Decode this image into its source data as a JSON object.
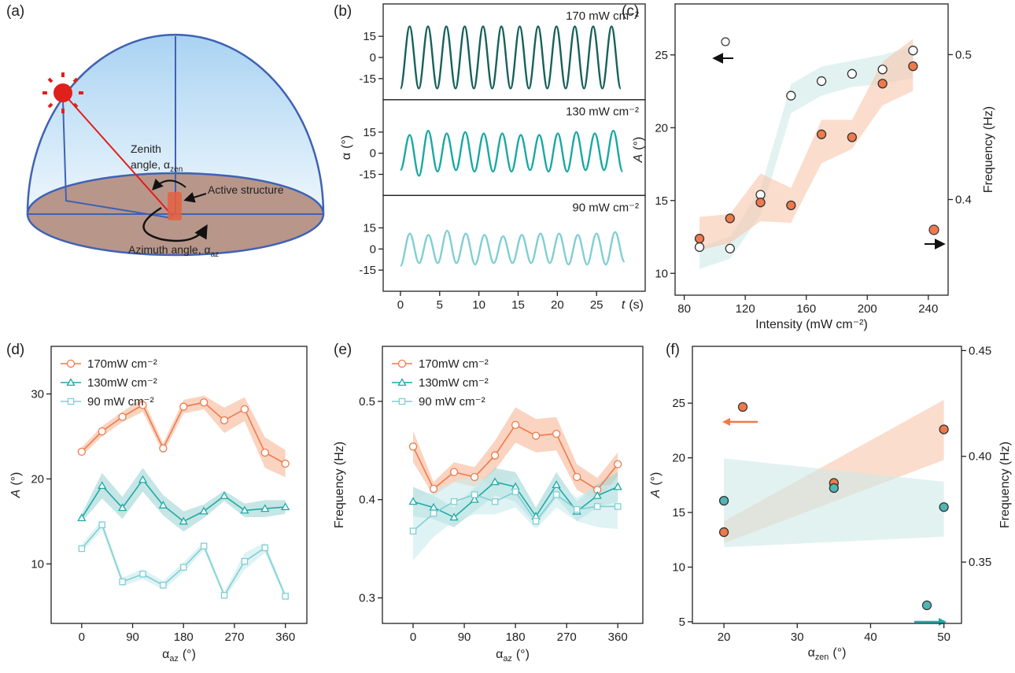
{
  "diagram": {
    "panel_label": "(a)",
    "zenith_label": {
      "line1": "Zenith",
      "line2": "angle, α",
      "subscript": "zen"
    },
    "structure_label": "Active structure",
    "azimuth_label": {
      "text": "Azimuth angle, α",
      "subscript": "az"
    }
  },
  "chart_data": [
    {
      "type": "line",
      "panel_label": "(b)",
      "xlabel": {
        "symbol": "t",
        "unit": "(s)"
      },
      "ylabel": {
        "symbol": "α",
        "unit": "(°)"
      },
      "xlim": [
        -2.2,
        31.2
      ],
      "xticks": [
        0,
        5,
        10,
        15,
        20,
        25
      ],
      "ylim": [
        -30,
        38
      ],
      "yticks": [
        -15,
        0,
        15
      ],
      "subplots": [
        {
          "annotation": "170 mW cm⁻²",
          "color": "#17615c",
          "x": [
            0,
            1.17,
            2.34,
            3.51,
            4.68,
            5.85,
            7.02,
            8.19,
            9.36,
            10.53,
            11.7,
            12.87,
            14.04,
            15.21,
            16.38,
            17.55,
            18.72,
            19.89,
            21.06,
            22.23,
            23.4,
            24.57,
            25.74,
            26.91,
            28.08
          ],
          "values": [
            -22,
            22,
            -22,
            22,
            -22,
            22,
            -22,
            22,
            -22,
            22,
            -22,
            22,
            -22,
            22,
            -22,
            22,
            -22,
            22,
            -22,
            22,
            -22,
            22,
            -22,
            22,
            -22
          ]
        },
        {
          "annotation": "130 mW cm⁻²",
          "color": "#1aa8a3",
          "x": [
            0,
            1.18,
            2.36,
            3.54,
            4.72,
            5.9,
            7.08,
            8.26,
            9.44,
            10.62,
            11.8,
            12.98,
            14.16,
            15.34,
            16.52,
            17.7,
            18.88,
            20.06,
            21.24,
            22.42,
            23.6,
            24.78,
            25.96,
            27.14,
            28.32
          ],
          "values": [
            -12,
            13,
            -16,
            16,
            -13,
            14,
            -12,
            15,
            -13,
            14,
            -13,
            14,
            -13,
            13,
            -12,
            13,
            -13,
            14,
            -13,
            15,
            -12,
            14,
            -12,
            16,
            -13
          ]
        },
        {
          "annotation": "90 mW cm⁻²",
          "color": "#7fcfd2",
          "x": [
            0,
            1.19,
            2.38,
            3.57,
            4.76,
            5.95,
            7.14,
            8.33,
            9.52,
            10.71,
            11.9,
            13.09,
            14.28,
            15.47,
            16.66,
            17.85,
            19.04,
            20.23,
            21.42,
            22.61,
            23.8,
            24.99,
            26.18,
            27.37,
            28.56
          ],
          "values": [
            -12,
            11,
            -10,
            10,
            -10,
            13,
            -10,
            11,
            -11,
            10,
            -10,
            9,
            -10,
            10,
            -10,
            11,
            -10,
            11,
            -11,
            10,
            -11,
            11,
            -11,
            12,
            -9
          ]
        }
      ]
    },
    {
      "type": "scatter",
      "panel_label": "(c)",
      "xlabel": "Intensity (mW cm⁻²)",
      "ylabel": {
        "symbol": "A",
        "unit": "(°)"
      },
      "y2label": "Frequency (Hz)",
      "xlim": [
        74,
        253
      ],
      "xticks": [
        80,
        120,
        160,
        200,
        240
      ],
      "ylim": [
        8.5,
        28.5
      ],
      "yticks": [
        10,
        15,
        20,
        25
      ],
      "y2lim": [
        0.334,
        0.535
      ],
      "y2ticks": [
        0.4,
        0.5
      ],
      "series": [
        {
          "color": "#ffffff",
          "edge": "#333333",
          "band_color": "#cfe9e8",
          "x": [
            90,
            110,
            130,
            150,
            170,
            190,
            210,
            230
          ],
          "values": [
            11.8,
            11.7,
            15.4,
            22.2,
            23.2,
            23.7,
            24.0,
            25.3
          ],
          "band_lower": [
            10.3,
            11.0,
            14.0,
            21.0,
            22.2,
            22.8,
            23.0,
            23.4
          ],
          "band_upper": [
            11.8,
            12.5,
            15.8,
            23.0,
            24.2,
            24.6,
            25.0,
            25.6
          ]
        },
        {
          "axis": "y2",
          "color": "#ee7a4c",
          "edge": "#333333",
          "band_color": "#f8c6ab",
          "x": [
            90,
            110,
            130,
            150,
            170,
            190,
            210,
            230
          ],
          "values": [
            0.373,
            0.387,
            0.398,
            0.396,
            0.445,
            0.443,
            0.48,
            0.492
          ],
          "band_lower": [
            0.365,
            0.37,
            0.385,
            0.384,
            0.425,
            0.435,
            0.465,
            0.475
          ],
          "band_upper": [
            0.388,
            0.39,
            0.418,
            0.408,
            0.455,
            0.455,
            0.495,
            0.511
          ]
        }
      ]
    },
    {
      "type": "line",
      "panel_label": "(d)",
      "legend": "upper left",
      "xlabel": {
        "symbol": "α",
        "subscript": "az",
        "unit": "(°)"
      },
      "ylabel": {
        "symbol": "A",
        "unit": "(°)"
      },
      "xlim": [
        -54,
        398
      ],
      "xticks": [
        0,
        90,
        180,
        270,
        360
      ],
      "ylim": [
        3.0,
        35.6
      ],
      "yticks": [
        10,
        20,
        30
      ],
      "x": [
        0,
        36,
        72,
        108,
        144,
        180,
        216,
        252,
        288,
        324,
        360
      ],
      "series": [
        {
          "name": "170mW cm⁻²",
          "color": "#ee7a4c",
          "band_color": "#f6b896",
          "marker": "circle",
          "values": [
            23.2,
            25.6,
            27.3,
            28.7,
            23.6,
            28.5,
            29.0,
            26.9,
            28.2,
            23.1,
            21.8
          ],
          "band_lower": [
            22.7,
            25.0,
            26.7,
            27.9,
            23.0,
            27.7,
            28.2,
            25.4,
            26.8,
            21.3,
            20.2
          ],
          "band_upper": [
            23.7,
            26.2,
            27.9,
            29.5,
            24.2,
            29.3,
            29.8,
            28.4,
            29.6,
            24.9,
            23.4
          ]
        },
        {
          "name": "130mW cm⁻²",
          "color": "#1fa9a6",
          "band_color": "#9fd6d4",
          "marker": "triangle",
          "values": [
            15.4,
            19.2,
            16.6,
            19.9,
            16.9,
            15.0,
            16.2,
            18.0,
            16.3,
            16.5,
            16.7
          ],
          "band_lower": [
            14.9,
            17.7,
            15.3,
            18.5,
            15.7,
            13.8,
            15.4,
            17.4,
            15.5,
            15.5,
            15.9
          ],
          "band_upper": [
            15.9,
            20.7,
            17.9,
            21.3,
            18.1,
            16.2,
            17.0,
            18.6,
            17.1,
            17.5,
            17.5
          ]
        },
        {
          "name": "90 mW cm⁻²",
          "color": "#7fcfd2",
          "band_color": "#c9ebec",
          "marker": "square",
          "values": [
            11.8,
            14.6,
            7.9,
            8.8,
            7.5,
            9.6,
            12.1,
            6.3,
            10.3,
            11.9,
            6.2
          ],
          "band_lower": [
            11.3,
            14.0,
            7.4,
            8.2,
            7.0,
            9.0,
            11.6,
            5.9,
            9.3,
            11.3,
            5.8
          ],
          "band_upper": [
            12.3,
            15.2,
            8.4,
            9.4,
            8.0,
            10.2,
            12.6,
            6.7,
            11.3,
            12.5,
            6.6
          ]
        }
      ]
    },
    {
      "type": "line",
      "panel_label": "(e)",
      "legend": "upper left",
      "xlabel": {
        "symbol": "α",
        "subscript": "az",
        "unit": "(°)"
      },
      "ylabel": "Frequency (Hz)",
      "xlim": [
        -54,
        404
      ],
      "xticks": [
        0,
        90,
        180,
        270,
        360
      ],
      "ylim": [
        0.274,
        0.556
      ],
      "yticks": [
        0.3,
        0.4,
        0.5
      ],
      "x": [
        0,
        36,
        72,
        108,
        144,
        180,
        216,
        252,
        288,
        324,
        360
      ],
      "series": [
        {
          "name": "170mW cm⁻²",
          "color": "#ee7a4c",
          "band_color": "#f6b896",
          "marker": "circle",
          "values": [
            0.454,
            0.411,
            0.428,
            0.423,
            0.445,
            0.476,
            0.465,
            0.467,
            0.423,
            0.41,
            0.436
          ],
          "band_lower": [
            0.438,
            0.404,
            0.418,
            0.413,
            0.43,
            0.458,
            0.448,
            0.45,
            0.41,
            0.398,
            0.424
          ],
          "band_upper": [
            0.47,
            0.418,
            0.438,
            0.433,
            0.46,
            0.494,
            0.482,
            0.484,
            0.436,
            0.422,
            0.448
          ]
        },
        {
          "name": "130mW cm⁻²",
          "color": "#1fa9a6",
          "band_color": "#9fd6d4",
          "marker": "triangle",
          "values": [
            0.398,
            0.392,
            0.382,
            0.4,
            0.418,
            0.413,
            0.383,
            0.415,
            0.388,
            0.404,
            0.413
          ],
          "band_lower": [
            0.383,
            0.38,
            0.372,
            0.388,
            0.404,
            0.398,
            0.374,
            0.402,
            0.378,
            0.392,
            0.398
          ],
          "band_upper": [
            0.413,
            0.404,
            0.392,
            0.412,
            0.432,
            0.428,
            0.392,
            0.428,
            0.398,
            0.416,
            0.428
          ]
        },
        {
          "name": "90 mW cm⁻²",
          "color": "#7fcfd2",
          "band_color": "#c9ebec",
          "marker": "square",
          "values": [
            0.368,
            0.386,
            0.398,
            0.405,
            0.398,
            0.408,
            0.378,
            0.405,
            0.39,
            0.393,
            0.393
          ],
          "band_lower": [
            0.338,
            0.362,
            0.378,
            0.385,
            0.385,
            0.392,
            0.37,
            0.392,
            0.378,
            0.372,
            0.37
          ],
          "band_upper": [
            0.398,
            0.41,
            0.418,
            0.425,
            0.411,
            0.424,
            0.386,
            0.418,
            0.402,
            0.414,
            0.416
          ]
        }
      ]
    },
    {
      "type": "scatter",
      "panel_label": "(f)",
      "xlabel": {
        "symbol": "α",
        "subscript": "zen",
        "unit": "(°)"
      },
      "ylabel": {
        "symbol": "A",
        "unit": "(°)"
      },
      "y2label": "Frequency (Hz)",
      "xlim": [
        15.7,
        52.4
      ],
      "xticks": [
        20,
        30,
        40,
        50
      ],
      "ylim": [
        4.85,
        30.2
      ],
      "yticks": [
        5,
        10,
        15,
        20,
        25
      ],
      "y2lim": [
        0.321,
        0.452
      ],
      "y2ticks": [
        0.35,
        {
          "value": 0.4,
          "label": "0.40"
        },
        0.45
      ],
      "series": [
        {
          "color": "#ee7a4c",
          "edge": "#333333",
          "band_color": "#f8c6ab",
          "x": [
            20,
            35,
            50
          ],
          "values": [
            13.2,
            17.7,
            22.6
          ],
          "band_lower": [
            12.2,
            16.0,
            19.8
          ],
          "band_upper": [
            14.2,
            19.75,
            25.3
          ]
        },
        {
          "axis": "y2",
          "color": "#4fb5b5",
          "edge": "#333333",
          "band_color": "#cfe9e8",
          "x": [
            20,
            35,
            50
          ],
          "values": [
            0.379,
            0.385,
            0.376
          ],
          "band_lower": [
            0.357,
            0.3595,
            0.362
          ],
          "band_upper": [
            0.399,
            0.3935,
            0.388
          ]
        }
      ]
    }
  ]
}
